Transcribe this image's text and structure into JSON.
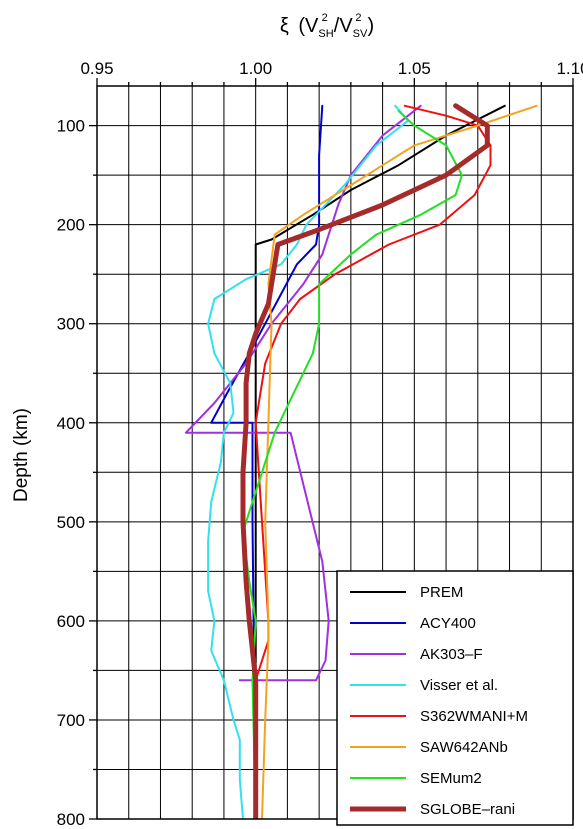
{
  "chart_data": {
    "type": "line",
    "title": "",
    "xlabel": {
      "symbol": "ξ",
      "open": "(V",
      "sub1": "SH",
      "sup1": "2",
      "slash": "/V",
      "sub2": "SV",
      "sup2": "2",
      "close": ")"
    },
    "ylabel": "Depth (km)",
    "xlim": [
      0.95,
      1.1
    ],
    "ylim": [
      60,
      800
    ],
    "y_inverted": true,
    "x_axis_position": "top",
    "x_ticks": [
      0.95,
      1.0,
      1.05,
      1.1
    ],
    "x_tick_labels": [
      "0.95",
      "1.00",
      "1.05",
      "1.10"
    ],
    "y_ticks": [
      100,
      200,
      300,
      400,
      500,
      600,
      700,
      800
    ],
    "y_tick_labels": [
      "100",
      "200",
      "300",
      "400",
      "500",
      "600",
      "700",
      "800"
    ],
    "grid": true,
    "legend_position": "bottom-right",
    "series": [
      {
        "name": "PREM",
        "color": "#000000",
        "width": 2,
        "points": [
          [
            1.0785,
            80
          ],
          [
            1.06,
            110
          ],
          [
            1.045,
            140
          ],
          [
            1.03,
            165
          ],
          [
            1.018,
            190
          ],
          [
            1.005,
            215
          ],
          [
            1.0,
            220
          ],
          [
            1.0,
            300
          ],
          [
            1.0,
            800
          ]
        ]
      },
      {
        "name": "ACY400",
        "color": "#0000cc",
        "width": 2,
        "points": [
          [
            1.021,
            80
          ],
          [
            1.02,
            130
          ],
          [
            1.02,
            170
          ],
          [
            1.02,
            200
          ],
          [
            1.019,
            220
          ],
          [
            1.013,
            240
          ],
          [
            1.008,
            270
          ],
          [
            1.003,
            300
          ],
          [
            0.998,
            330
          ],
          [
            0.991,
            370
          ],
          [
            0.986,
            400
          ],
          [
            0.999,
            400
          ],
          [
            0.999,
            500
          ],
          [
            1.0,
            800
          ]
        ]
      },
      {
        "name": "AK303–F",
        "color": "#a030e0",
        "width": 2,
        "points": [
          [
            1.052,
            80
          ],
          [
            1.04,
            110
          ],
          [
            1.03,
            150
          ],
          [
            1.026,
            180
          ],
          [
            1.021,
            230
          ],
          [
            1.015,
            260
          ],
          [
            1.005,
            300
          ],
          [
            0.997,
            340
          ],
          [
            0.987,
            380
          ],
          [
            0.978,
            410
          ],
          [
            1.011,
            410
          ],
          [
            1.021,
            540
          ],
          [
            1.023,
            600
          ],
          [
            1.022,
            640
          ],
          [
            1.019,
            660
          ],
          [
            0.995,
            660
          ]
        ]
      },
      {
        "name": "Visser et al.",
        "color": "#33e0ee",
        "width": 2,
        "points": [
          [
            1.044,
            80
          ],
          [
            1.048,
            95
          ],
          [
            1.038,
            120
          ],
          [
            1.028,
            160
          ],
          [
            1.016,
            200
          ],
          [
            1.013,
            220
          ],
          [
            1.008,
            240
          ],
          [
            0.997,
            255
          ],
          [
            0.987,
            275
          ],
          [
            0.985,
            300
          ],
          [
            0.987,
            330
          ],
          [
            0.992,
            360
          ],
          [
            0.993,
            390
          ],
          [
            0.99,
            410
          ],
          [
            0.989,
            440
          ],
          [
            0.986,
            480
          ],
          [
            0.985,
            520
          ],
          [
            0.985,
            570
          ],
          [
            0.987,
            600
          ],
          [
            0.986,
            630
          ],
          [
            0.99,
            660
          ],
          [
            0.993,
            700
          ],
          [
            0.995,
            720
          ],
          [
            0.995,
            760
          ],
          [
            0.996,
            800
          ]
        ]
      },
      {
        "name": "S362WMANI+M",
        "color": "#ee1111",
        "width": 2,
        "points": [
          [
            1.047,
            80
          ],
          [
            1.06,
            90
          ],
          [
            1.07,
            100
          ],
          [
            1.074,
            120
          ],
          [
            1.074,
            140
          ],
          [
            1.069,
            170
          ],
          [
            1.058,
            200
          ],
          [
            1.042,
            220
          ],
          [
            1.025,
            250
          ],
          [
            1.014,
            275
          ],
          [
            1.008,
            300
          ],
          [
            1.003,
            340
          ],
          [
            1.001,
            380
          ],
          [
            1.0,
            400
          ],
          [
            1.002,
            500
          ],
          [
            1.004,
            600
          ],
          [
            1.004,
            620
          ],
          [
            1.002,
            640
          ],
          [
            1.0,
            660
          ],
          [
            1.0,
            800
          ]
        ]
      },
      {
        "name": "SAW642ANb",
        "color": "#f5a21e",
        "width": 2,
        "points": [
          [
            1.0885,
            80
          ],
          [
            1.07,
            100
          ],
          [
            1.05,
            120
          ],
          [
            1.03,
            160
          ],
          [
            1.015,
            190
          ],
          [
            1.006,
            210
          ],
          [
            1.004,
            260
          ],
          [
            1.005,
            300
          ],
          [
            1.004,
            400
          ],
          [
            1.003,
            500
          ],
          [
            1.004,
            600
          ],
          [
            1.004,
            620
          ],
          [
            1.003,
            700
          ],
          [
            1.002,
            800
          ]
        ]
      },
      {
        "name": "SEMum2",
        "color": "#22e022",
        "width": 2,
        "points": [
          [
            1.045,
            85
          ],
          [
            1.05,
            100
          ],
          [
            1.06,
            120
          ],
          [
            1.065,
            150
          ],
          [
            1.063,
            170
          ],
          [
            1.052,
            190
          ],
          [
            1.038,
            210
          ],
          [
            1.03,
            230
          ],
          [
            1.02,
            260
          ],
          [
            1.02,
            300
          ],
          [
            1.018,
            330
          ],
          [
            1.012,
            370
          ],
          [
            1.006,
            410
          ],
          [
            1.002,
            450
          ],
          [
            0.998,
            490
          ],
          [
            0.996,
            510
          ],
          [
            0.998,
            560
          ],
          [
            1.0,
            600
          ],
          [
            0.999,
            660
          ],
          [
            1.0,
            800
          ]
        ]
      },
      {
        "name": "SGLOBE–rani",
        "color": "#a52a2a",
        "width": 5,
        "points": [
          [
            1.063,
            80
          ],
          [
            1.068,
            90
          ],
          [
            1.073,
            100
          ],
          [
            1.073,
            120
          ],
          [
            1.06,
            150
          ],
          [
            1.04,
            180
          ],
          [
            1.02,
            205
          ],
          [
            1.007,
            220
          ],
          [
            1.006,
            240
          ],
          [
            1.004,
            280
          ],
          [
            1.0,
            310
          ],
          [
            0.998,
            330
          ],
          [
            0.997,
            360
          ],
          [
            0.997,
            400
          ],
          [
            0.996,
            450
          ],
          [
            0.996,
            500
          ],
          [
            0.997,
            560
          ],
          [
            0.998,
            600
          ],
          [
            1.0,
            660
          ],
          [
            1.0,
            700
          ],
          [
            1.0,
            800
          ]
        ]
      }
    ]
  }
}
